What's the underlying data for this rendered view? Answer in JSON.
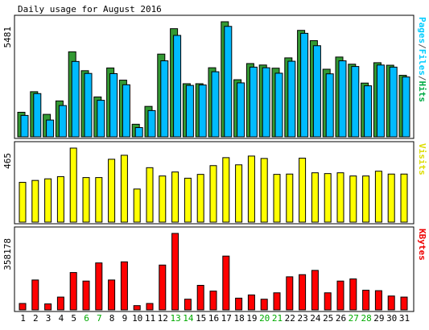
{
  "chart_data": {
    "type": "bar",
    "title": "Daily usage for August 2016",
    "days": [
      "1",
      "2",
      "3",
      "4",
      "5",
      "6",
      "7",
      "8",
      "9",
      "10",
      "11",
      "12",
      "13",
      "14",
      "15",
      "16",
      "17",
      "18",
      "19",
      "20",
      "21",
      "22",
      "23",
      "24",
      "25",
      "26",
      "27",
      "28",
      "29",
      "30",
      "31"
    ],
    "weekend_days": [
      "6",
      "7",
      "13",
      "14",
      "20",
      "21",
      "27",
      "28"
    ],
    "panels": [
      {
        "id": "hits-panel",
        "max_label": "5481",
        "ymax": 5481,
        "right_label": {
          "parts": [
            {
              "text": "Pages",
              "color": "#00ccff"
            },
            {
              "text": "/",
              "color": "#555555"
            },
            {
              "text": "Files",
              "color": "#00ccff"
            },
            {
              "text": "/",
              "color": "#555555"
            },
            {
              "text": "Hits",
              "color": "#00aa44"
            }
          ]
        },
        "series": [
          {
            "name": "Hits",
            "color": "#339933",
            "values": [
              1170,
              2150,
              1070,
              1710,
              4050,
              3150,
              1900,
              3280,
              2700,
              600,
              1450,
              3940,
              5150,
              2530,
              2530,
              3290,
              5481,
              2720,
              3490,
              3420,
              3270,
              3760,
              5070,
              4580,
              3220,
              3800,
              3460,
              2560,
              3530,
              3410,
              2930
            ]
          },
          {
            "name": "Files",
            "color": "#00bbff",
            "values": [
              1020,
              2060,
              800,
              1490,
              3590,
              3020,
              1740,
              3010,
              2480,
              440,
              1250,
              3620,
              4830,
              2450,
              2470,
              3100,
              5260,
              2570,
              3320,
              3290,
              3030,
              3600,
              4930,
              4340,
              3000,
              3620,
              3350,
              2430,
              3420,
              3320,
              2850
            ]
          }
        ]
      },
      {
        "id": "visits-panel",
        "max_label": "465",
        "ymax": 465,
        "right_label": {
          "parts": [
            {
              "text": "Visits",
              "color": "#dddd00"
            }
          ]
        },
        "series": [
          {
            "name": "Visits",
            "color": "#ffff00",
            "values": [
              250,
              262,
              272,
              286,
              465,
              280,
              280,
              395,
              420,
              208,
              342,
              290,
              315,
              276,
              300,
              355,
              405,
              360,
              415,
              400,
              300,
              302,
              402,
              310,
              305,
              310,
              290,
              290,
              320,
              302,
              302
            ]
          }
        ]
      },
      {
        "id": "kbytes-panel",
        "max_label": "358178",
        "ymax": 358178,
        "right_label": {
          "parts": [
            {
              "text": "KBytes",
              "color": "#ee0000"
            }
          ]
        },
        "series": [
          {
            "name": "KBytes",
            "color": "#ff0000",
            "values": [
              30000,
              140000,
              28000,
              60000,
              175000,
              135000,
              220000,
              140000,
              225000,
              20000,
              30000,
              210000,
              358178,
              50000,
              115000,
              88000,
              252000,
              55000,
              70000,
              50000,
              80000,
              155000,
              165000,
              185000,
              80000,
              135000,
              145000,
              92000,
              90000,
              65000,
              60000
            ]
          }
        ]
      }
    ]
  },
  "colors": {
    "background": "#ffffff",
    "panel_border": "#000000",
    "text": "#000000",
    "weekend": "#00aa00",
    "shadow": "#000000"
  }
}
